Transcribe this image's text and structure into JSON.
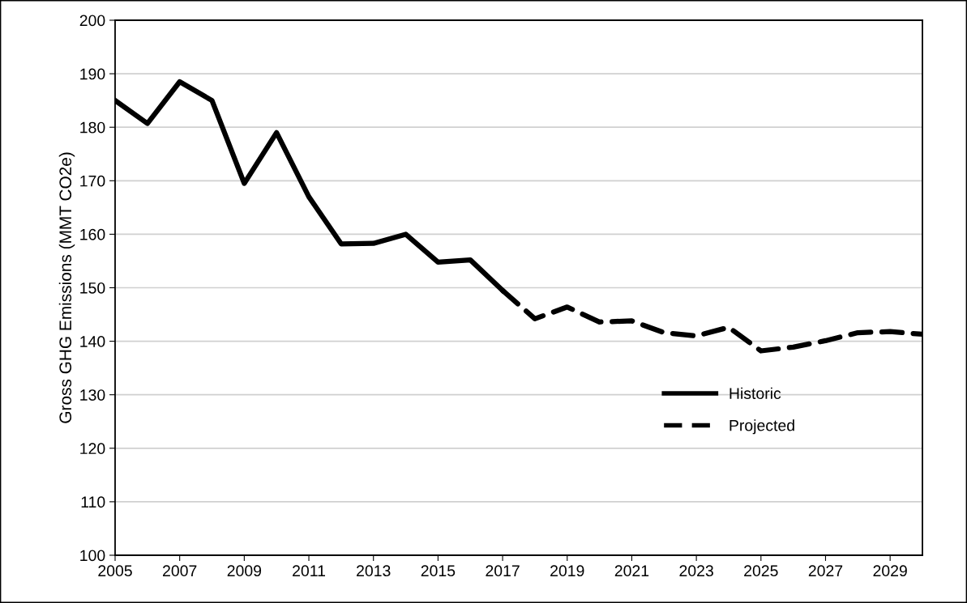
{
  "chart_data": {
    "type": "line",
    "ylabel": "Gross GHG Emissions (MMT CO2e)",
    "xlim": [
      2005,
      2030
    ],
    "xticks": [
      2005,
      2007,
      2009,
      2011,
      2013,
      2015,
      2017,
      2019,
      2021,
      2023,
      2025,
      2027,
      2029
    ],
    "ylim": [
      100,
      200
    ],
    "yticks": [
      100,
      110,
      120,
      130,
      140,
      150,
      160,
      170,
      180,
      190,
      200
    ],
    "grid": "y",
    "legend": "right",
    "series": [
      {
        "name": "Historic",
        "color": "#000000",
        "line_style": "solid",
        "x": [
          2005,
          2006,
          2007,
          2008,
          2009,
          2010,
          2011,
          2012,
          2013,
          2014,
          2015,
          2016,
          2017
        ],
        "values": [
          185,
          180.7,
          188.5,
          185,
          169.5,
          179,
          167,
          158.2,
          158.3,
          160,
          154.8,
          155.2,
          149.5
        ]
      },
      {
        "name": "Projected",
        "color": "#000000",
        "line_style": "dashed",
        "x": [
          2017,
          2018,
          2019,
          2020,
          2021,
          2022,
          2023,
          2024,
          2025,
          2026,
          2027,
          2028,
          2029,
          2030
        ],
        "values": [
          149.5,
          144.2,
          146.4,
          143.6,
          143.8,
          141.6,
          141,
          142.6,
          138.2,
          138.9,
          140.1,
          141.6,
          141.8,
          141.3
        ]
      }
    ]
  }
}
